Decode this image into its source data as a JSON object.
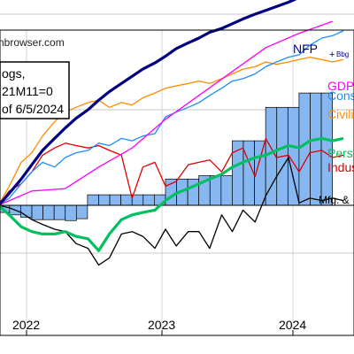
{
  "chart_data": {
    "type": "line",
    "source_text": "nbrowser.com",
    "legend_box": {
      "lines": [
        "ogs,",
        "21M11=0",
        "of 6/5/2024"
      ]
    },
    "x_ticks": [
      "2022",
      "2023",
      "2024"
    ],
    "y_range": [
      -1.5,
      5.0
    ],
    "series": [
      {
        "name": "NFP",
        "color": "#000080",
        "width": 3.2,
        "points": [
          [
            2021.79,
            0.0
          ],
          [
            2021.87,
            0.25
          ],
          [
            2021.96,
            0.55
          ],
          [
            2022.04,
            0.85
          ],
          [
            2022.12,
            1.15
          ],
          [
            2022.21,
            1.4
          ],
          [
            2022.29,
            1.62
          ],
          [
            2022.37,
            1.82
          ],
          [
            2022.46,
            2.0
          ],
          [
            2022.54,
            2.2
          ],
          [
            2022.62,
            2.38
          ],
          [
            2022.71,
            2.55
          ],
          [
            2022.79,
            2.7
          ],
          [
            2022.87,
            2.85
          ],
          [
            2022.96,
            2.98
          ],
          [
            2023.04,
            3.12
          ],
          [
            2023.12,
            3.28
          ],
          [
            2023.21,
            3.4
          ],
          [
            2023.29,
            3.5
          ],
          [
            2023.37,
            3.62
          ],
          [
            2023.46,
            3.7
          ],
          [
            2023.54,
            3.8
          ],
          [
            2023.62,
            3.9
          ],
          [
            2023.71,
            4.0
          ],
          [
            2023.79,
            4.08
          ],
          [
            2023.87,
            4.16
          ],
          [
            2023.96,
            4.25
          ],
          [
            2024.04,
            4.35
          ],
          [
            2024.12,
            4.45
          ],
          [
            2024.21,
            4.55
          ],
          [
            2024.29,
            4.64
          ],
          [
            2024.37,
            4.72
          ]
        ]
      },
      {
        "name": "GDP",
        "color": "#ff00ff",
        "width": 1.3,
        "points": [
          [
            2021.79,
            0.0
          ],
          [
            2022.04,
            0.3
          ],
          [
            2022.29,
            0.35
          ],
          [
            2022.54,
            0.8
          ],
          [
            2022.79,
            1.2
          ],
          [
            2023.04,
            1.8
          ],
          [
            2023.29,
            2.3
          ],
          [
            2023.54,
            2.8
          ],
          [
            2023.79,
            3.3
          ],
          [
            2024.04,
            3.6
          ],
          [
            2024.29,
            3.85
          ]
        ]
      },
      {
        "name": "Cons",
        "color": "#1e8cff",
        "width": 1.3,
        "points": [
          [
            2021.79,
            0.0
          ],
          [
            2021.87,
            0.15
          ],
          [
            2021.96,
            0.45
          ],
          [
            2022.04,
            0.7
          ],
          [
            2022.12,
            0.9
          ],
          [
            2022.21,
            0.8
          ],
          [
            2022.29,
            1.0
          ],
          [
            2022.37,
            1.1
          ],
          [
            2022.46,
            1.15
          ],
          [
            2022.54,
            1.3
          ],
          [
            2022.62,
            1.25
          ],
          [
            2022.71,
            1.4
          ],
          [
            2022.79,
            1.35
          ],
          [
            2022.87,
            1.45
          ],
          [
            2022.96,
            1.5
          ],
          [
            2023.04,
            1.85
          ],
          [
            2023.12,
            1.95
          ],
          [
            2023.21,
            2.05
          ],
          [
            2023.29,
            2.15
          ],
          [
            2023.37,
            2.3
          ],
          [
            2023.46,
            2.45
          ],
          [
            2023.54,
            2.6
          ],
          [
            2023.62,
            2.65
          ],
          [
            2023.71,
            2.75
          ],
          [
            2023.79,
            2.9
          ],
          [
            2023.87,
            3.0
          ],
          [
            2023.96,
            3.1
          ],
          [
            2024.04,
            3.15
          ],
          [
            2024.12,
            3.35
          ],
          [
            2024.21,
            3.5
          ],
          [
            2024.29,
            3.55
          ],
          [
            2024.37,
            3.65
          ]
        ]
      },
      {
        "name": "Civili",
        "color": "#ff8c00",
        "width": 1.3,
        "points": [
          [
            2021.79,
            0.0
          ],
          [
            2021.87,
            0.4
          ],
          [
            2021.96,
            0.9
          ],
          [
            2022.04,
            1.1
          ],
          [
            2022.12,
            1.45
          ],
          [
            2022.21,
            1.75
          ],
          [
            2022.29,
            1.95
          ],
          [
            2022.37,
            2.05
          ],
          [
            2022.46,
            2.15
          ],
          [
            2022.54,
            2.2
          ],
          [
            2022.62,
            2.05
          ],
          [
            2022.71,
            2.15
          ],
          [
            2022.79,
            2.1
          ],
          [
            2022.87,
            2.25
          ],
          [
            2022.96,
            2.35
          ],
          [
            2023.04,
            2.45
          ],
          [
            2023.12,
            2.5
          ],
          [
            2023.21,
            2.55
          ],
          [
            2023.29,
            2.6
          ],
          [
            2023.37,
            2.55
          ],
          [
            2023.46,
            2.65
          ],
          [
            2023.54,
            2.75
          ],
          [
            2023.62,
            2.85
          ],
          [
            2023.71,
            2.9
          ],
          [
            2023.79,
            3.0
          ],
          [
            2023.87,
            2.95
          ],
          [
            2023.96,
            3.0
          ],
          [
            2024.04,
            3.05
          ],
          [
            2024.12,
            3.1
          ],
          [
            2024.21,
            3.05
          ],
          [
            2024.29,
            3.0
          ],
          [
            2024.37,
            3.05
          ]
        ]
      },
      {
        "name": "Perso",
        "color": "#00c060",
        "width": 3.2,
        "points": [
          [
            2021.79,
            0.0
          ],
          [
            2021.87,
            -0.2
          ],
          [
            2021.96,
            -0.45
          ],
          [
            2022.04,
            -0.55
          ],
          [
            2022.12,
            -0.6
          ],
          [
            2022.21,
            -0.6
          ],
          [
            2022.29,
            -0.55
          ],
          [
            2022.37,
            -0.65
          ],
          [
            2022.46,
            -0.7
          ],
          [
            2022.54,
            -0.95
          ],
          [
            2022.62,
            -0.6
          ],
          [
            2022.71,
            -0.3
          ],
          [
            2022.79,
            -0.2
          ],
          [
            2022.87,
            -0.15
          ],
          [
            2022.96,
            -0.1
          ],
          [
            2023.04,
            0.1
          ],
          [
            2023.12,
            0.25
          ],
          [
            2023.21,
            0.35
          ],
          [
            2023.29,
            0.45
          ],
          [
            2023.37,
            0.55
          ],
          [
            2023.46,
            0.65
          ],
          [
            2023.54,
            0.8
          ],
          [
            2023.62,
            0.9
          ],
          [
            2023.71,
            1.0
          ],
          [
            2023.79,
            1.05
          ],
          [
            2023.87,
            1.15
          ],
          [
            2023.96,
            1.25
          ],
          [
            2024.04,
            1.2
          ],
          [
            2024.12,
            1.35
          ],
          [
            2024.21,
            1.4
          ],
          [
            2024.29,
            1.35
          ],
          [
            2024.37,
            1.4
          ]
        ]
      },
      {
        "name": "Indus",
        "color": "#e00000",
        "width": 1.3,
        "points": [
          [
            2021.79,
            0.0
          ],
          [
            2021.87,
            0.3
          ],
          [
            2021.96,
            0.45
          ],
          [
            2022.04,
            0.7
          ],
          [
            2022.12,
            1.05
          ],
          [
            2022.21,
            1.2
          ],
          [
            2022.29,
            1.3
          ],
          [
            2022.37,
            1.25
          ],
          [
            2022.46,
            1.2
          ],
          [
            2022.54,
            1.25
          ],
          [
            2022.62,
            1.15
          ],
          [
            2022.71,
            1.05
          ],
          [
            2022.79,
            0.15
          ],
          [
            2022.87,
            0.8
          ],
          [
            2022.96,
            0.9
          ],
          [
            2023.04,
            0.4
          ],
          [
            2023.12,
            0.5
          ],
          [
            2023.21,
            0.85
          ],
          [
            2023.29,
            0.9
          ],
          [
            2023.37,
            0.95
          ],
          [
            2023.46,
            0.7
          ],
          [
            2023.54,
            1.1
          ],
          [
            2023.62,
            1.2
          ],
          [
            2023.71,
            0.6
          ],
          [
            2023.79,
            1.4
          ],
          [
            2023.87,
            1.0
          ],
          [
            2023.96,
            1.05
          ],
          [
            2024.04,
            0.7
          ],
          [
            2024.12,
            1.1
          ],
          [
            2024.21,
            1.15
          ],
          [
            2024.29,
            1.0
          ],
          [
            2024.37,
            1.05
          ]
        ]
      },
      {
        "name": "Mfg. &",
        "color": "#000000",
        "width": 1.3,
        "points": [
          [
            2021.79,
            0.0
          ],
          [
            2021.87,
            -0.05
          ],
          [
            2021.96,
            -0.15
          ],
          [
            2022.04,
            -0.3
          ],
          [
            2022.12,
            -0.4
          ],
          [
            2022.21,
            -0.5
          ],
          [
            2022.29,
            -0.55
          ],
          [
            2022.37,
            -0.8
          ],
          [
            2022.46,
            -0.9
          ],
          [
            2022.54,
            -1.25
          ],
          [
            2022.62,
            -1.1
          ],
          [
            2022.71,
            -0.6
          ],
          [
            2022.79,
            -0.55
          ],
          [
            2022.87,
            -0.65
          ],
          [
            2022.96,
            -0.9
          ],
          [
            2023.04,
            -0.5
          ],
          [
            2023.12,
            -0.85
          ],
          [
            2023.21,
            -0.55
          ],
          [
            2023.29,
            -0.55
          ],
          [
            2023.37,
            -0.9
          ],
          [
            2023.46,
            -0.2
          ],
          [
            2023.54,
            -0.55
          ],
          [
            2023.62,
            -0.1
          ],
          [
            2023.71,
            -0.35
          ],
          [
            2023.79,
            0.2
          ],
          [
            2023.87,
            0.6
          ],
          [
            2023.96,
            1.0
          ],
          [
            2024.04,
            0.05
          ],
          [
            2024.12,
            0.15
          ],
          [
            2024.21,
            0.1
          ],
          [
            2024.29,
            0.15
          ],
          [
            2024.37,
            0.1
          ]
        ]
      }
    ],
    "bars": {
      "name": "Bars",
      "color": "#87b7f0",
      "edge": "#000000",
      "values": [
        0.02,
        -0.1,
        -0.15,
        -0.15,
        -0.2,
        -0.25,
        -0.3,
        -0.3,
        -0.3,
        -0.32,
        -0.28,
        0.22,
        0.22,
        0.22,
        0.22,
        0.22,
        0.22,
        0.22,
        0.55,
        0.55,
        0.55,
        0.62,
        0.62,
        0.62,
        1.35,
        1.35,
        1.35,
        2.05,
        2.05,
        2.05,
        2.35,
        2.35,
        2.35,
        2.65,
        2.65,
        2.65,
        2.7,
        2.7,
        2.7
      ],
      "start": 2021.54,
      "step": 0.0833
    },
    "end_labels": {
      "NFP": "NFP",
      "Bbg": "Bbg",
      "GDP": "GDP",
      "Cons": "Cons",
      "Civili": "Civili",
      "Perso": "Perso",
      "Indus": "Indus",
      "Mfg": "Mfg. &"
    }
  }
}
